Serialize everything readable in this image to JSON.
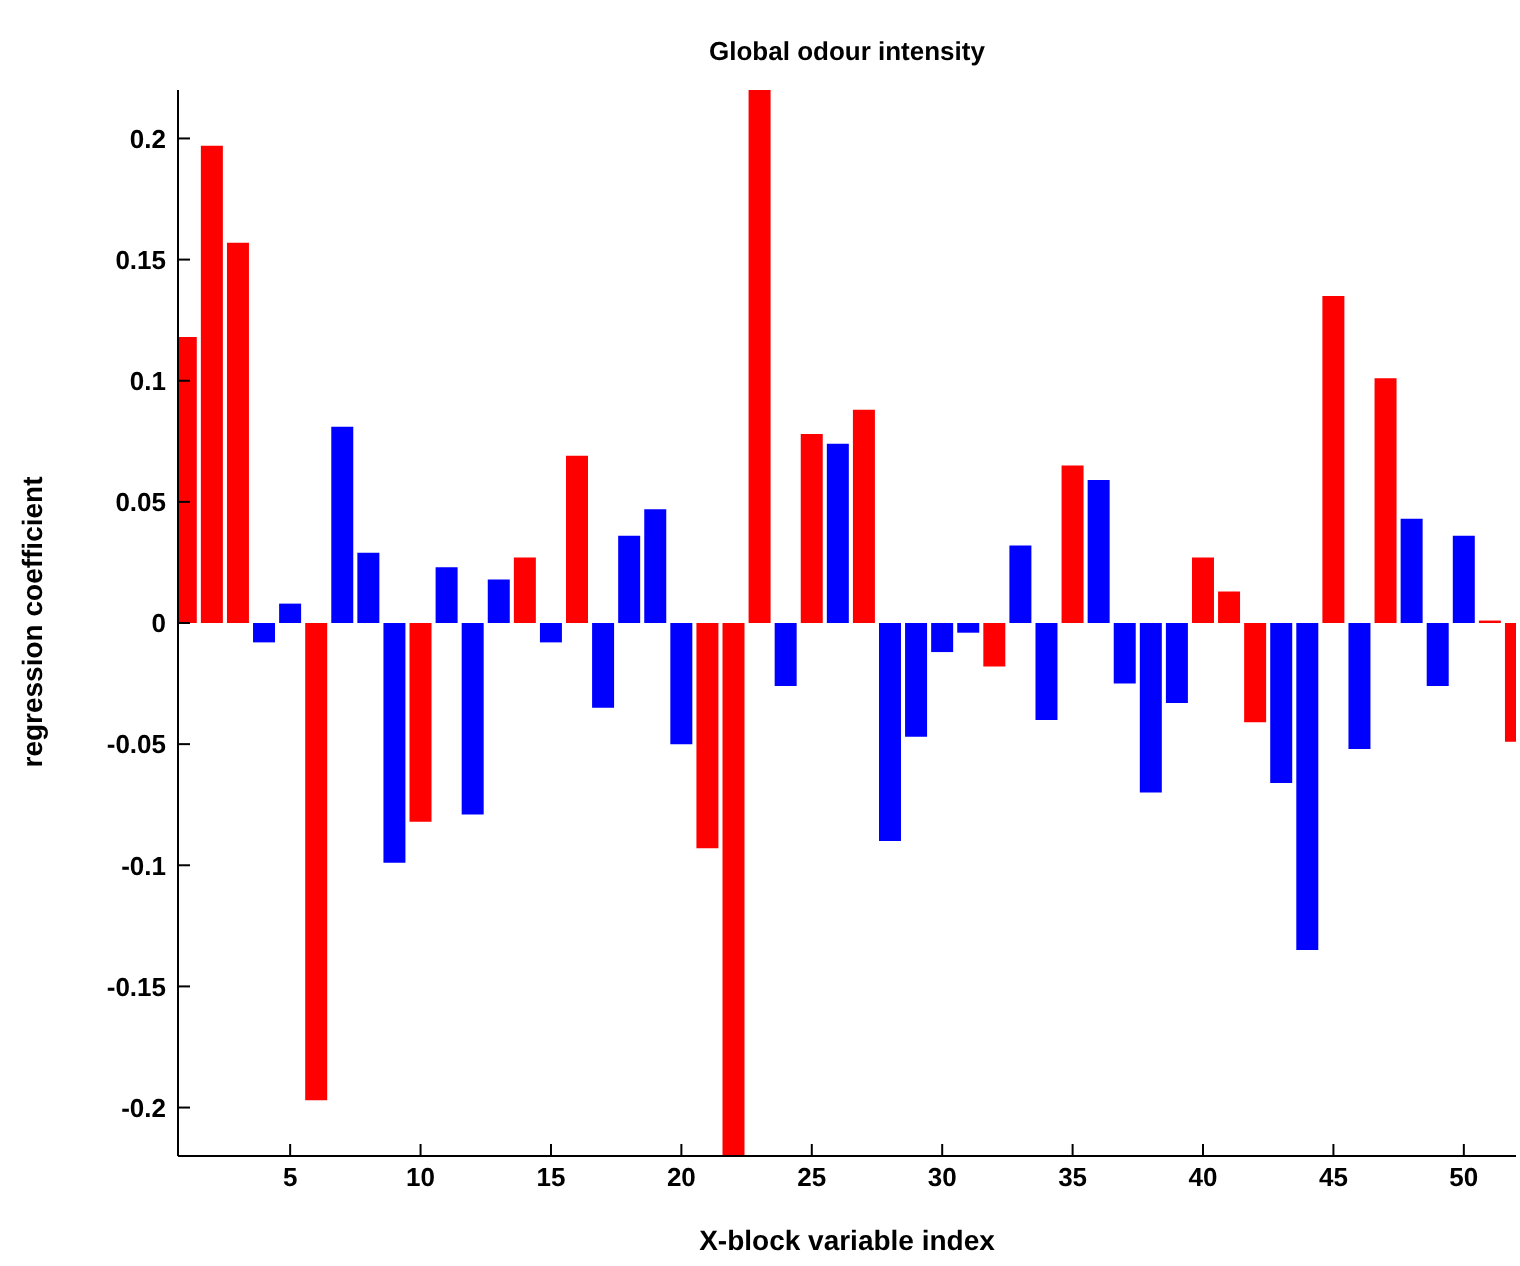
{
  "chart_data": {
    "type": "bar",
    "title": "Global odour intensity",
    "xlabel": "X-block variable index",
    "ylabel": "regression coefficient",
    "x": [
      1,
      2,
      3,
      4,
      5,
      6,
      7,
      8,
      9,
      10,
      11,
      12,
      13,
      14,
      15,
      16,
      17,
      18,
      19,
      20,
      21,
      22,
      23,
      24,
      25,
      26,
      27,
      28,
      29,
      30,
      31,
      32,
      33,
      34,
      35,
      36,
      37,
      38,
      39,
      40,
      41,
      42,
      43,
      44,
      45,
      46,
      47,
      48,
      49,
      50,
      51,
      52
    ],
    "values": [
      0.118,
      0.197,
      0.157,
      -0.008,
      0.008,
      -0.197,
      0.081,
      0.029,
      -0.099,
      -0.082,
      0.023,
      -0.079,
      0.018,
      0.027,
      -0.008,
      0.069,
      -0.035,
      0.036,
      0.047,
      -0.05,
      -0.093,
      -0.22,
      0.22,
      -0.026,
      0.078,
      0.074,
      0.088,
      -0.09,
      -0.047,
      -0.012,
      -0.004,
      -0.018,
      0.032,
      -0.04,
      0.065,
      0.059,
      -0.025,
      -0.07,
      -0.033,
      0.027,
      0.013,
      -0.041,
      -0.066,
      -0.135,
      0.135,
      -0.052,
      0.101,
      0.043,
      -0.026,
      0.036,
      0.001,
      -0.049
    ],
    "colors": [
      "#ff0000",
      "#ff0000",
      "#ff0000",
      "#0000ff",
      "#0000ff",
      "#ff0000",
      "#0000ff",
      "#0000ff",
      "#0000ff",
      "#ff0000",
      "#0000ff",
      "#0000ff",
      "#0000ff",
      "#ff0000",
      "#0000ff",
      "#ff0000",
      "#0000ff",
      "#0000ff",
      "#0000ff",
      "#0000ff",
      "#ff0000",
      "#ff0000",
      "#ff0000",
      "#0000ff",
      "#ff0000",
      "#0000ff",
      "#ff0000",
      "#0000ff",
      "#0000ff",
      "#0000ff",
      "#0000ff",
      "#ff0000",
      "#0000ff",
      "#0000ff",
      "#ff0000",
      "#0000ff",
      "#0000ff",
      "#0000ff",
      "#0000ff",
      "#ff0000",
      "#ff0000",
      "#ff0000",
      "#0000ff",
      "#0000ff",
      "#ff0000",
      "#0000ff",
      "#ff0000",
      "#0000ff",
      "#0000ff",
      "#0000ff",
      "#ff0000",
      "#ff0000"
    ],
    "xlim": [
      0.7,
      52
    ],
    "xticks": [
      5,
      10,
      15,
      20,
      25,
      30,
      35,
      40,
      45,
      50
    ],
    "ylim": [
      -0.22,
      0.22
    ],
    "yticks": [
      -0.2,
      -0.15,
      -0.1,
      -0.05,
      0,
      0.05,
      0.1,
      0.15,
      0.2
    ],
    "grid": false,
    "legend": false
  }
}
